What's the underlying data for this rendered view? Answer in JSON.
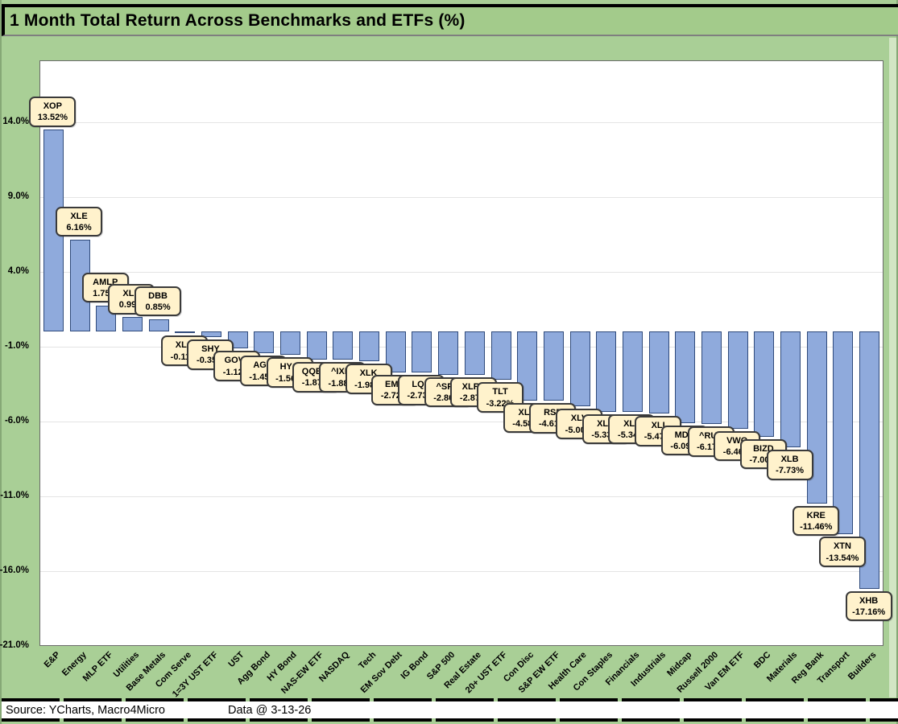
{
  "window": {
    "title": "1 Month Total Return Across Benchmarks and ETFs (%)"
  },
  "footer": {
    "source": "Source: YCharts, Macro4Micro",
    "data_date": "Data @ 3-13-26"
  },
  "colors": {
    "background_green": "#A9CF96",
    "title_band_green": "#A3CB8B",
    "bar_fill": "#8FAADC",
    "bar_border": "#2F4A7B",
    "label_box_bg": "#FFF2CC",
    "label_box_border": "#3A3A3A",
    "plot_bg": "#FFFFFF",
    "gridline": "#E4E4E4"
  },
  "chart_data": {
    "type": "bar",
    "title": "1 Month Total Return Across Benchmarks and ETFs (%)",
    "xlabel": "",
    "ylabel": "",
    "grid": true,
    "ylim": [
      -21.0,
      18.1
    ],
    "y_axis": {
      "ticks": [
        "14.0%",
        "9.0%",
        "4.0%",
        "-1.0%",
        "-6.0%",
        "-11.0%",
        "-16.0%",
        "-21.0%"
      ],
      "tick_values": [
        14,
        9,
        4,
        -1,
        -6,
        -11,
        -16,
        -21
      ]
    },
    "categories": [
      "E&P",
      "Energy",
      "MLP ETF",
      "Utilities",
      "Base Metals",
      "Com Serve",
      "1=3Y UST ETF",
      "UST",
      "Agg Bond",
      "HY Bond",
      "NAS-EW ETF",
      "NASDAQ",
      "Tech",
      "EM Sov Debt",
      "IG Bond",
      "S&P 500",
      "Real Estate",
      "20+ UST ETF",
      "Con Disc",
      "S&P EW ETF",
      "Health Care",
      "Con Staples",
      "Financials",
      "Industrials",
      "Midcap",
      "Russell 2000",
      "Van EM ETF",
      "BDC",
      "Materials",
      "Reg Bank",
      "Transport",
      "Builders"
    ],
    "series": [
      {
        "name": "1 Month Total Return (%)",
        "points": [
          {
            "category": "E&P",
            "ticker": "XOP",
            "value": 13.52,
            "display": "13.52%"
          },
          {
            "category": "Energy",
            "ticker": "XLE",
            "value": 6.16,
            "display": "6.16%"
          },
          {
            "category": "MLP ETF",
            "ticker": "AMLP",
            "value": 1.75,
            "display": "1.75%"
          },
          {
            "category": "Utilities",
            "ticker": "XLU",
            "value": 0.99,
            "display": "0.99%"
          },
          {
            "category": "Base Metals",
            "ticker": "DBB",
            "value": 0.85,
            "display": "0.85%"
          },
          {
            "category": "Com Serve",
            "ticker": "XLC",
            "value": -0.11,
            "display": "-0.11%"
          },
          {
            "category": "1=3Y UST ETF",
            "ticker": "SHY",
            "value": -0.35,
            "display": "-0.35%"
          },
          {
            "category": "UST",
            "ticker": "GOVT",
            "value": -1.12,
            "display": "-1.12%"
          },
          {
            "category": "Agg Bond",
            "ticker": "AGG",
            "value": -1.45,
            "display": "-1.45%"
          },
          {
            "category": "HY Bond",
            "ticker": "HYG",
            "value": -1.56,
            "display": "-1.56%"
          },
          {
            "category": "NAS-EW ETF",
            "ticker": "QQEW",
            "value": -1.87,
            "display": "-1.87%"
          },
          {
            "category": "NASDAQ",
            "ticker": "^IXIC",
            "value": -1.88,
            "display": "-1.88%"
          },
          {
            "category": "Tech",
            "ticker": "XLK",
            "value": -1.98,
            "display": "-1.98%"
          },
          {
            "category": "EM Sov Debt",
            "ticker": "EMB",
            "value": -2.72,
            "display": "-2.72%"
          },
          {
            "category": "IG Bond",
            "ticker": "LQD",
            "value": -2.73,
            "display": "-2.73%"
          },
          {
            "category": "S&P 500",
            "ticker": "^SPX",
            "value": -2.86,
            "display": "-2.86%"
          },
          {
            "category": "Real Estate",
            "ticker": "XLRE",
            "value": -2.87,
            "display": "-2.87%"
          },
          {
            "category": "20+ UST ETF",
            "ticker": "TLT",
            "value": -3.22,
            "display": "-3.22%"
          },
          {
            "category": "Con Disc",
            "ticker": "XLY",
            "value": -4.58,
            "display": "-4.58%"
          },
          {
            "category": "S&P EW ETF",
            "ticker": "RSP",
            "value": -4.61,
            "display": "-4.61%"
          },
          {
            "category": "Health Care",
            "ticker": "XLV",
            "value": -5.0,
            "display": "-5.00%"
          },
          {
            "category": "Con Staples",
            "ticker": "XLP",
            "value": -5.33,
            "display": "-5.33%"
          },
          {
            "category": "Financials",
            "ticker": "XLF",
            "value": -5.34,
            "display": "-5.34%"
          },
          {
            "category": "Industrials",
            "ticker": "XLI",
            "value": -5.47,
            "display": "-5.47%"
          },
          {
            "category": "Midcap",
            "ticker": "MDY",
            "value": -6.09,
            "display": "-6.09%"
          },
          {
            "category": "Russell 2000",
            "ticker": "^RUT",
            "value": -6.17,
            "display": "-6.17%"
          },
          {
            "category": "Van EM ETF",
            "ticker": "VWO",
            "value": -6.46,
            "display": "-6.46%"
          },
          {
            "category": "BDC",
            "ticker": "BIZD",
            "value": -7.0,
            "display": "-7.00%"
          },
          {
            "category": "Materials",
            "ticker": "XLB",
            "value": -7.73,
            "display": "-7.73%"
          },
          {
            "category": "Reg Bank",
            "ticker": "KRE",
            "value": -11.46,
            "display": "-11.46%"
          },
          {
            "category": "Transport",
            "ticker": "XTN",
            "value": -13.54,
            "display": "-13.54%"
          },
          {
            "category": "Builders",
            "ticker": "XHB",
            "value": -17.16,
            "display": "-17.16%"
          }
        ]
      }
    ]
  }
}
